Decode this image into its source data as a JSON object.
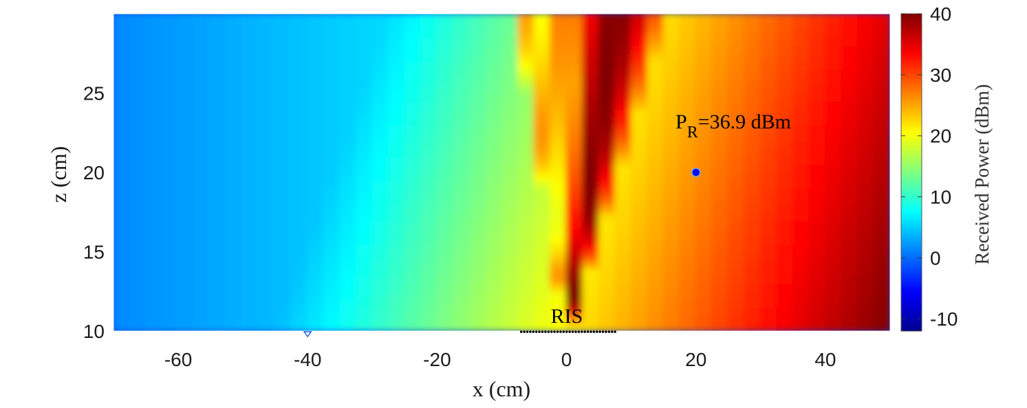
{
  "chart_data": {
    "type": "heatmap",
    "xlabel": "x (cm)",
    "ylabel": "z (cm)",
    "xlim": [
      -70,
      50
    ],
    "ylim": [
      10,
      30
    ],
    "x_ticks": [
      -60,
      -40,
      -20,
      0,
      20,
      40
    ],
    "y_ticks": [
      10,
      15,
      20,
      25
    ],
    "colorbar": {
      "label": "Received Power (dBm)",
      "range": [
        -12,
        40
      ],
      "ticks": [
        -10,
        0,
        10,
        20,
        30,
        40
      ],
      "colormap": "jet"
    },
    "grid": false,
    "ris": {
      "label": "RIS",
      "x_range": [
        -7,
        7.5
      ],
      "z": 10,
      "element_count": 32
    },
    "receiver": {
      "x": 20,
      "z": 20,
      "color": "#1010e0",
      "annotation": {
        "base": "P",
        "subscript": "R",
        "text": "=36.9 dBm"
      }
    },
    "transmitter": {
      "x": -40,
      "z": 10
    },
    "beam_center_angle_deg": 20,
    "main_lobe_peak_dBm": 40
  }
}
